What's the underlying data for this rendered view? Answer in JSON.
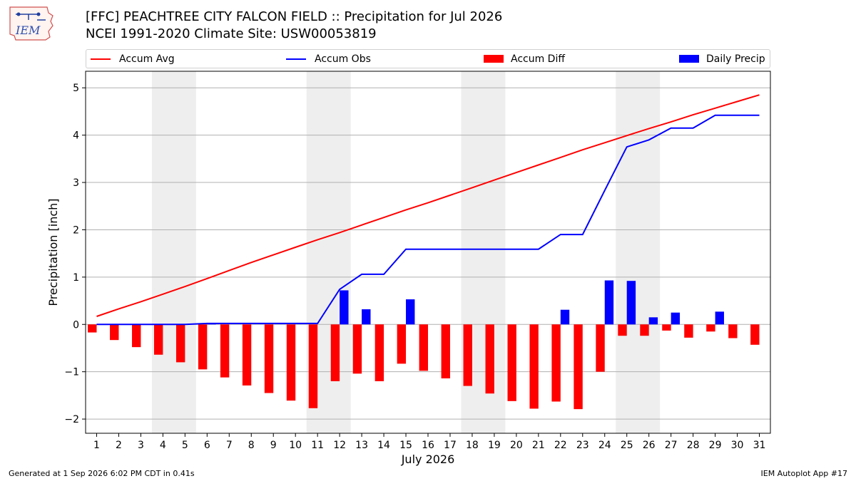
{
  "header": {
    "title_line1": "[FFC] PEACHTREE CITY FALCON FIELD :: Precipitation for Jul 2026",
    "title_line2": "NCEI 1991-2020 Climate Site: USW00053819",
    "logo_text": "IEM"
  },
  "footer": {
    "left": "Generated at 1 Sep 2026 6:02 PM CDT in 0.41s",
    "right": "IEM Autoplot App #17"
  },
  "legend": {
    "accum_avg": "Accum Avg",
    "accum_obs": "Accum Obs",
    "accum_diff": "Accum Diff",
    "daily_precip": "Daily Precip"
  },
  "colors": {
    "accum_avg": "#ff0000",
    "accum_obs": "#0000ff",
    "accum_diff": "#ff0000",
    "daily_precip": "#0000ff",
    "weekend_shade": "#eeeeee",
    "grid": "#b0b0b0"
  },
  "chart_data": {
    "type": "bar",
    "xlabel": "July 2026",
    "ylabel": "Precipitation [inch]",
    "ylim": [
      -2.3,
      5.35
    ],
    "yticks": [
      -2,
      -1,
      0,
      1,
      2,
      3,
      4,
      5
    ],
    "ytick_labels": [
      "−2",
      "−1",
      "0",
      "1",
      "2",
      "3",
      "4",
      "5"
    ],
    "grid": "horizontal",
    "legend_position": "top",
    "x": [
      1,
      2,
      3,
      4,
      5,
      6,
      7,
      8,
      9,
      10,
      11,
      12,
      13,
      14,
      15,
      16,
      17,
      18,
      19,
      20,
      21,
      22,
      23,
      24,
      25,
      26,
      27,
      28,
      29,
      30,
      31
    ],
    "weekend_spans": [
      [
        4,
        5
      ],
      [
        11,
        12
      ],
      [
        18,
        19
      ],
      [
        25,
        26
      ]
    ],
    "series": [
      {
        "name": "Accum Avg",
        "kind": "line",
        "values": [
          0.17,
          0.33,
          0.48,
          0.64,
          0.8,
          0.97,
          1.14,
          1.31,
          1.47,
          1.63,
          1.79,
          1.94,
          2.1,
          2.26,
          2.42,
          2.57,
          2.73,
          2.89,
          3.05,
          3.21,
          3.37,
          3.53,
          3.69,
          3.84,
          3.99,
          4.14,
          4.28,
          4.43,
          4.57,
          4.71,
          4.85
        ]
      },
      {
        "name": "Accum Obs",
        "kind": "line",
        "values": [
          0.0,
          0.0,
          0.0,
          0.0,
          0.0,
          0.02,
          0.02,
          0.02,
          0.02,
          0.02,
          0.02,
          0.74,
          1.06,
          1.06,
          1.59,
          1.59,
          1.59,
          1.59,
          1.59,
          1.59,
          1.59,
          1.9,
          1.9,
          2.83,
          3.75,
          3.9,
          4.15,
          4.15,
          4.42,
          4.42,
          4.42
        ]
      },
      {
        "name": "Accum Diff",
        "kind": "bar",
        "values": [
          -0.17,
          -0.33,
          -0.48,
          -0.64,
          -0.8,
          -0.95,
          -1.12,
          -1.29,
          -1.45,
          -1.61,
          -1.77,
          -1.2,
          -1.04,
          -1.2,
          -0.83,
          -0.98,
          -1.14,
          -1.3,
          -1.46,
          -1.62,
          -1.78,
          -1.63,
          -1.79,
          -1.0,
          -0.24,
          -0.24,
          -0.13,
          -0.28,
          -0.15,
          -0.29,
          -0.43
        ]
      },
      {
        "name": "Daily Precip",
        "kind": "bar",
        "values": [
          0,
          0,
          0,
          0,
          0,
          0.02,
          0,
          0,
          0,
          0,
          0,
          0.72,
          0.32,
          0,
          0.53,
          0,
          0,
          0,
          0,
          0,
          0,
          0.31,
          0,
          0.93,
          0.92,
          0.15,
          0.25,
          0,
          0.27,
          0,
          0
        ]
      }
    ]
  }
}
